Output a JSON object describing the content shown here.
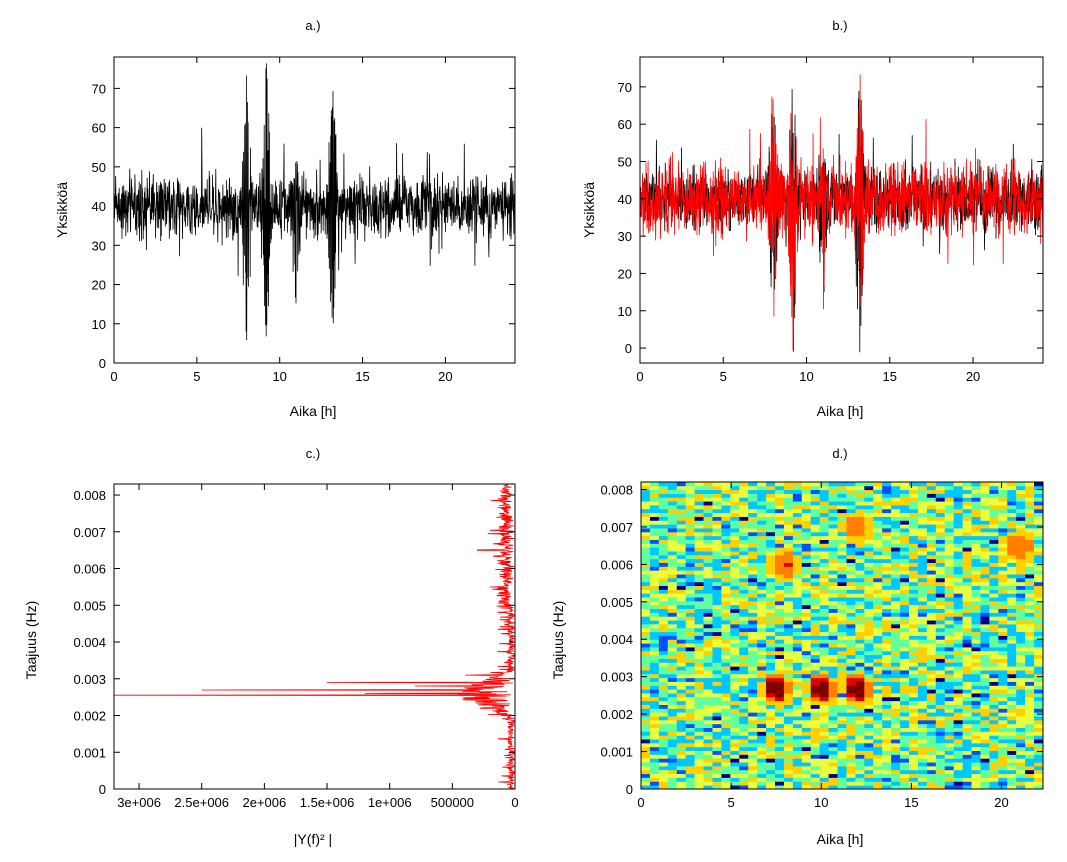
{
  "chart_data": [
    {
      "type": "line",
      "panel": "a",
      "title": "a.)",
      "xlabel": "Aika [h]",
      "ylabel": "Yksikköä",
      "xlim": [
        0,
        24.2
      ],
      "ylim": [
        0,
        78
      ],
      "xticks": [
        0,
        5,
        10,
        15,
        20
      ],
      "yticks": [
        0,
        10,
        20,
        30,
        40,
        50,
        60,
        70
      ],
      "grid": false,
      "series": [
        {
          "color": "#000000",
          "baseline": 40,
          "noise_amplitude": 5,
          "bursts": [
            {
              "x": 8.0,
              "min": 3,
              "max": 74
            },
            {
              "x": 9.2,
              "min": 0,
              "max": 78
            },
            {
              "x": 11.0,
              "min": 9,
              "max": 55
            },
            {
              "x": 13.2,
              "min": 0,
              "max": 75
            }
          ]
        }
      ]
    },
    {
      "type": "line",
      "panel": "b",
      "title": "b.)",
      "xlabel": "Aika [h]",
      "ylabel": "Yksikköä",
      "xlim": [
        0,
        24.2
      ],
      "ylim": [
        -4,
        78
      ],
      "xticks": [
        0,
        5,
        10,
        15,
        20
      ],
      "yticks": [
        0,
        10,
        20,
        30,
        40,
        50,
        60,
        70
      ],
      "grid": false,
      "series": [
        {
          "color": "#000000",
          "baseline": 40,
          "noise_amplitude": 5,
          "bursts": [
            {
              "x": 8.0,
              "min": 3,
              "max": 74
            },
            {
              "x": 9.2,
              "min": -4,
              "max": 78
            },
            {
              "x": 11.0,
              "min": 8,
              "max": 55
            },
            {
              "x": 13.2,
              "min": -4,
              "max": 75
            }
          ]
        },
        {
          "color": "#ff0000",
          "baseline": 40,
          "noise_amplitude": 6,
          "bursts": [
            {
              "x": 8.0,
              "min": 3,
              "max": 74
            },
            {
              "x": 9.2,
              "min": -4,
              "max": 78
            },
            {
              "x": 11.0,
              "min": 8,
              "max": 55
            },
            {
              "x": 13.2,
              "min": -4,
              "max": 75
            }
          ]
        }
      ]
    },
    {
      "type": "line",
      "panel": "c",
      "title": "c.)",
      "xlabel": "|Y(f)² |",
      "ylabel": "Taajuus (Hz)",
      "xlim": [
        3200000,
        0
      ],
      "ylim": [
        0,
        0.0083
      ],
      "xtick_labels": [
        "3e+006",
        "2.5e+006",
        "2e+006",
        "1.5e+006",
        "1e+006",
        "500000",
        "0"
      ],
      "xticks": [
        3000000,
        2500000,
        2000000,
        1500000,
        1000000,
        500000,
        0
      ],
      "yticks": [
        0,
        0.001,
        0.002,
        0.003,
        0.004,
        0.005,
        0.006,
        0.007,
        0.008
      ],
      "ytick_labels": [
        "0",
        "0.001",
        "0.002",
        "0.003",
        "0.004",
        "0.005",
        "0.006",
        "0.007",
        "0.008"
      ],
      "grid": false,
      "series": [
        {
          "color": "#ff0000",
          "peak_frequency": 0.00255,
          "peak_value": 3200000,
          "peaks": [
            {
              "f": 0.00255,
              "v": 3200000
            },
            {
              "f": 0.0027,
              "v": 2500000
            },
            {
              "f": 0.0029,
              "v": 1500000
            },
            {
              "f": 0.0026,
              "v": 1200000
            },
            {
              "f": 0.0028,
              "v": 800000
            },
            {
              "f": 0.0031,
              "v": 400000
            },
            {
              "f": 0.0065,
              "v": 300000
            },
            {
              "f": 0.0055,
              "v": 200000
            }
          ]
        }
      ]
    },
    {
      "type": "heatmap",
      "panel": "d",
      "title": "d.)",
      "xlabel": "Aika [h]",
      "ylabel": "Taajuus (Hz)",
      "xlim": [
        0,
        22.3
      ],
      "ylim": [
        0,
        0.0082
      ],
      "xticks": [
        0,
        5,
        10,
        15,
        20
      ],
      "yticks": [
        0,
        0.001,
        0.002,
        0.003,
        0.004,
        0.005,
        0.006,
        0.007,
        0.008
      ],
      "ytick_labels": [
        "0",
        "0.001",
        "0.002",
        "0.003",
        "0.004",
        "0.005",
        "0.006",
        "0.007",
        "0.008"
      ],
      "colormap": [
        "#00008b",
        "#0050ff",
        "#00c8ff",
        "#60ffa0",
        "#e8ff40",
        "#ffd000",
        "#ff8000",
        "#e00000",
        "#800000"
      ],
      "hot_spots": [
        {
          "x": 7.5,
          "f": 0.0027,
          "intensity": 1.0
        },
        {
          "x": 10.0,
          "f": 0.0027,
          "intensity": 0.95
        },
        {
          "x": 12.0,
          "f": 0.0027,
          "intensity": 0.95
        },
        {
          "x": 8.0,
          "f": 0.006,
          "intensity": 0.55
        },
        {
          "x": 12.0,
          "f": 0.007,
          "intensity": 0.45
        },
        {
          "x": 21.0,
          "f": 0.0065,
          "intensity": 0.5
        }
      ]
    }
  ]
}
